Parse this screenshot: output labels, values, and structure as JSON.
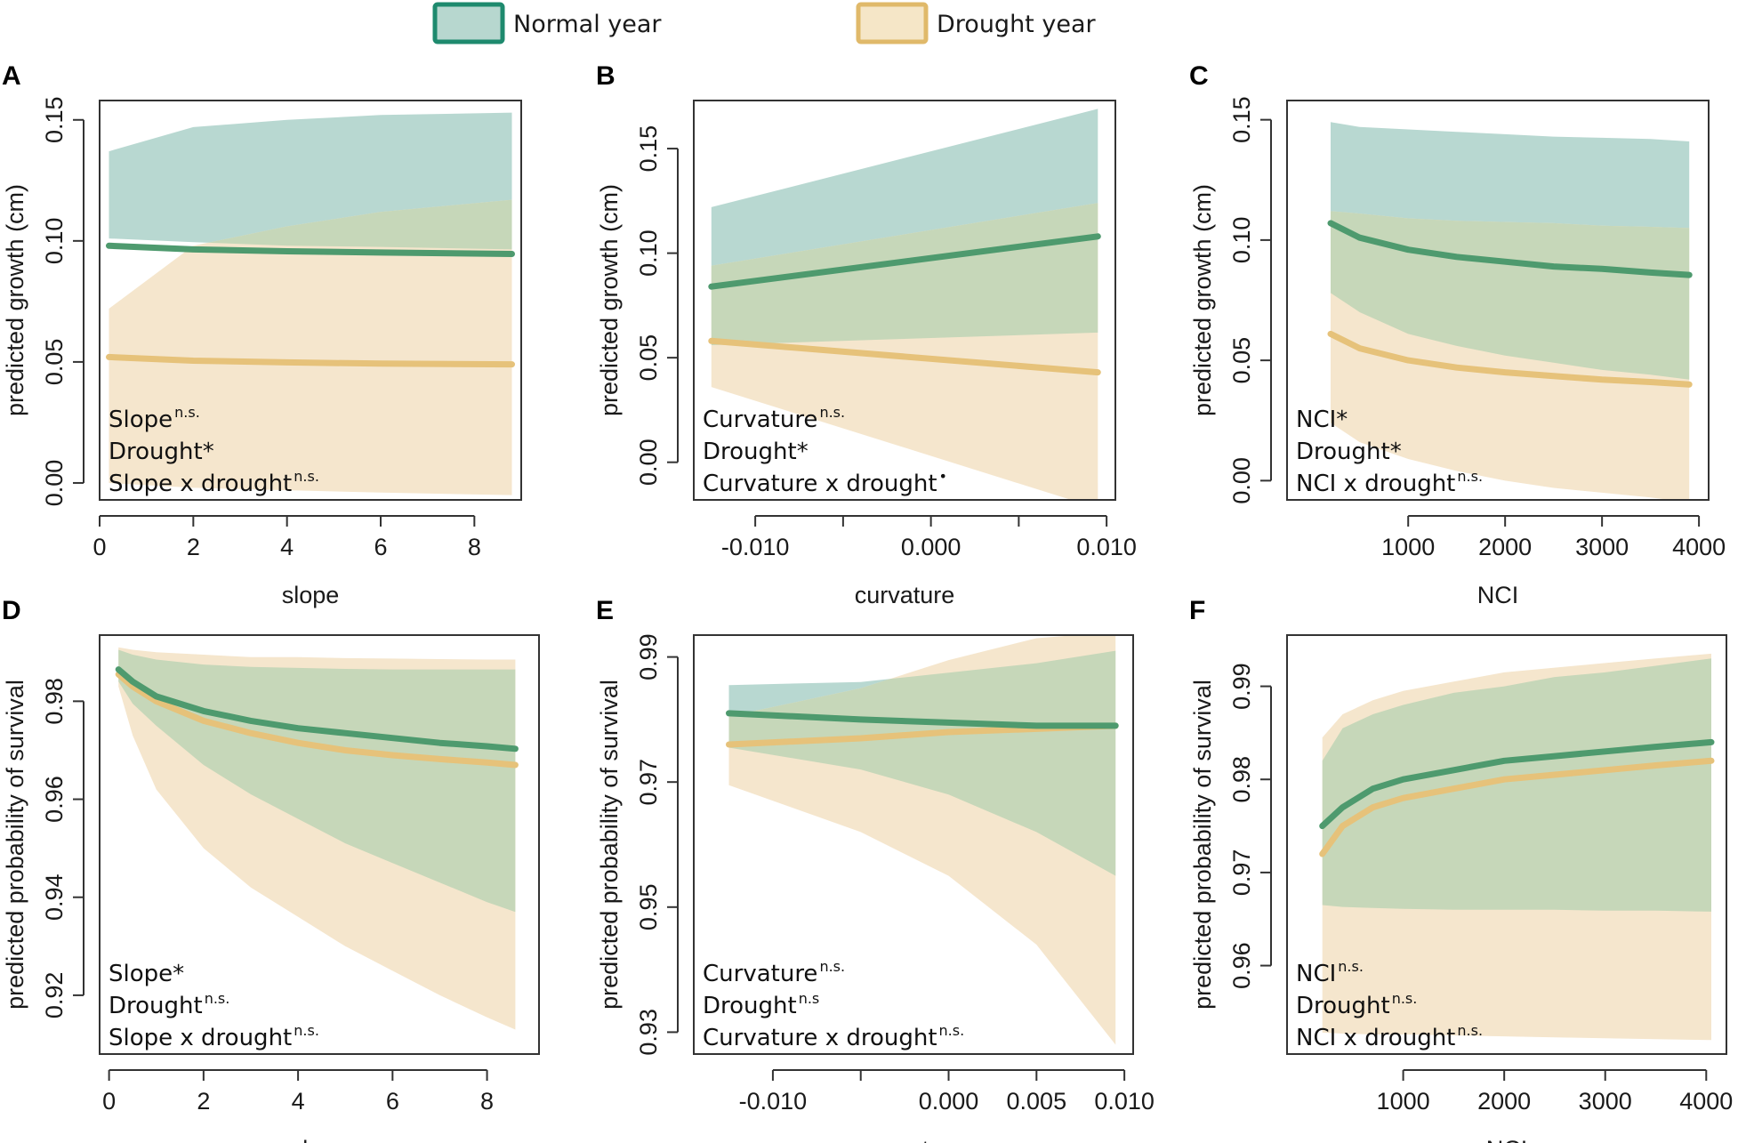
{
  "legend": {
    "items": [
      {
        "label": "Normal year",
        "fill": "#b7d7cf",
        "border": "#1e8a6e"
      },
      {
        "label": "Drought year",
        "fill": "#f5e6c7",
        "border": "#e0b96a"
      }
    ]
  },
  "colors": {
    "normal_line": "#4e9a6e",
    "drought_line": "#e6c27a",
    "normal_band": "#9cc9bf",
    "drought_band": "#f5e6cd",
    "overlap_band": "#c6d7b9"
  },
  "chart_data": [
    {
      "panel": "A",
      "type": "line",
      "xlabel": "slope",
      "ylabel": "predicted growth (cm)",
      "xlim": [
        0,
        9
      ],
      "ylim": [
        -0.007,
        0.158
      ],
      "xticks": [
        "0",
        "2",
        "4",
        "6",
        "8"
      ],
      "xtick_values": [
        0,
        2,
        4,
        6,
        8
      ],
      "yticks": [
        "0.00",
        "0.05",
        "0.10",
        "0.15"
      ],
      "ytick_values": [
        0,
        0.05,
        0.1,
        0.15
      ],
      "series": [
        {
          "name": "Normal year",
          "x": [
            0.2,
            2,
            4,
            6,
            8.8
          ],
          "y": [
            0.098,
            0.0965,
            0.0957,
            0.0952,
            0.0946
          ],
          "lower": [
            0.101,
            0.0995,
            0.098,
            0.0975,
            0.0965
          ],
          "upper": [
            0.137,
            0.147,
            0.15,
            0.152,
            0.153
          ]
        },
        {
          "name": "Drought year",
          "x": [
            0.2,
            2,
            4,
            6,
            8.8
          ],
          "y": [
            0.052,
            0.0505,
            0.0498,
            0.0493,
            0.049
          ],
          "lower": [
            0.0,
            -0.002,
            -0.003,
            -0.004,
            -0.005
          ],
          "upper": [
            0.072,
            0.098,
            0.106,
            0.112,
            0.117
          ]
        }
      ],
      "annotation": [
        {
          "text": "Slope",
          "sup": "n.s."
        },
        {
          "text": "Drought*",
          "sup": ""
        },
        {
          "text": "Slope x drought",
          "sup": "n.s."
        }
      ]
    },
    {
      "panel": "B",
      "type": "line",
      "xlabel": "curvature",
      "ylabel": "predicted growth (cm)",
      "xlim": [
        -0.0135,
        0.0105
      ],
      "ylim": [
        -0.018,
        0.173
      ],
      "xticks": [
        "-0.010",
        "0.000",
        "0.010"
      ],
      "xtick_values": [
        -0.01,
        0.0,
        0.01
      ],
      "minor_xticks": [
        -0.005,
        0.005
      ],
      "yticks": [
        "0.00",
        "0.05",
        "0.10",
        "0.15"
      ],
      "ytick_values": [
        0,
        0.05,
        0.1,
        0.15
      ],
      "series": [
        {
          "name": "Normal year",
          "x": [
            -0.0125,
            0.0095
          ],
          "y": [
            0.084,
            0.108
          ],
          "lower": [
            0.056,
            0.062
          ],
          "upper": [
            0.122,
            0.169
          ]
        },
        {
          "name": "Drought year",
          "x": [
            -0.0125,
            0.0095
          ],
          "y": [
            0.058,
            0.043
          ],
          "lower": [
            0.036,
            -0.022
          ],
          "upper": [
            0.094,
            0.124
          ]
        }
      ],
      "annotation": [
        {
          "text": "Curvature",
          "sup": "n.s."
        },
        {
          "text": "Drought*",
          "sup": ""
        },
        {
          "text": "Curvature x drought",
          "sup": "•"
        }
      ]
    },
    {
      "panel": "C",
      "type": "line",
      "xlabel": "NCI",
      "ylabel": "predicted growth (cm)",
      "xlim": [
        -250,
        4100
      ],
      "ylim": [
        -0.008,
        0.158
      ],
      "xticks": [
        "1000",
        "2000",
        "3000",
        "4000"
      ],
      "xtick_values": [
        1000,
        2000,
        3000,
        4000
      ],
      "yticks": [
        "0.00",
        "0.05",
        "0.10",
        "0.15"
      ],
      "ytick_values": [
        0,
        0.05,
        0.1,
        0.15
      ],
      "series": [
        {
          "name": "Normal year",
          "x": [
            200,
            500,
            1000,
            1500,
            2000,
            2500,
            3000,
            3500,
            3900
          ],
          "y": [
            0.107,
            0.101,
            0.096,
            0.093,
            0.091,
            0.089,
            0.088,
            0.0865,
            0.0855
          ],
          "lower": [
            0.078,
            0.07,
            0.061,
            0.056,
            0.052,
            0.049,
            0.046,
            0.044,
            0.042
          ],
          "upper": [
            0.149,
            0.147,
            0.146,
            0.145,
            0.144,
            0.143,
            0.1425,
            0.142,
            0.141
          ]
        },
        {
          "name": "Drought year",
          "x": [
            200,
            500,
            1000,
            1500,
            2000,
            2500,
            3000,
            3500,
            3900
          ],
          "y": [
            0.061,
            0.055,
            0.05,
            0.047,
            0.045,
            0.0435,
            0.042,
            0.041,
            0.04
          ],
          "lower": [
            0.024,
            0.016,
            0.009,
            0.004,
            0.0,
            -0.003,
            -0.005,
            -0.007,
            -0.009
          ],
          "upper": [
            0.112,
            0.111,
            0.109,
            0.108,
            0.1075,
            0.107,
            0.106,
            0.1055,
            0.105
          ]
        }
      ],
      "annotation": [
        {
          "text": "NCI*",
          "sup": ""
        },
        {
          "text": "Drought*",
          "sup": ""
        },
        {
          "text": "NCI x drought",
          "sup": "n.s."
        }
      ]
    },
    {
      "panel": "D",
      "type": "line",
      "xlabel": "slope",
      "ylabel": "predicted probability of survival",
      "xlim": [
        -0.2,
        9.1
      ],
      "ylim": [
        0.908,
        0.9935
      ],
      "xticks": [
        "0",
        "2",
        "4",
        "6",
        "8"
      ],
      "xtick_values": [
        0,
        2,
        4,
        6,
        8
      ],
      "yticks": [
        "0.92",
        "0.94",
        "0.96",
        "0.98"
      ],
      "ytick_values": [
        0.92,
        0.94,
        0.96,
        0.98
      ],
      "series": [
        {
          "name": "Normal year",
          "x": [
            0.2,
            0.5,
            1,
            2,
            3,
            4,
            5,
            6,
            7,
            8,
            8.6
          ],
          "y": [
            0.9865,
            0.984,
            0.981,
            0.978,
            0.976,
            0.9745,
            0.9735,
            0.9725,
            0.9715,
            0.9708,
            0.9703
          ],
          "lower": [
            0.984,
            0.9795,
            0.975,
            0.967,
            0.961,
            0.956,
            0.951,
            0.947,
            0.943,
            0.939,
            0.937
          ],
          "upper": [
            0.9905,
            0.9895,
            0.9885,
            0.9875,
            0.987,
            0.9868,
            0.9866,
            0.9865,
            0.9865,
            0.9865,
            0.9865
          ]
        },
        {
          "name": "Drought year",
          "x": [
            0.2,
            0.5,
            1,
            2,
            3,
            4,
            5,
            6,
            7,
            8,
            8.6
          ],
          "y": [
            0.9855,
            0.983,
            0.98,
            0.976,
            0.9735,
            0.9715,
            0.97,
            0.969,
            0.9682,
            0.9675,
            0.967
          ],
          "lower": [
            0.983,
            0.973,
            0.962,
            0.95,
            0.942,
            0.936,
            0.93,
            0.925,
            0.92,
            0.9155,
            0.913
          ],
          "upper": [
            0.991,
            0.9905,
            0.99,
            0.9895,
            0.989,
            0.989,
            0.9888,
            0.9887,
            0.9886,
            0.9885,
            0.9885
          ]
        }
      ],
      "annotation": [
        {
          "text": "Slope*",
          "sup": ""
        },
        {
          "text": "Drought",
          "sup": "n.s."
        },
        {
          "text": "Slope x drought",
          "sup": "n.s."
        }
      ]
    },
    {
      "panel": "E",
      "type": "line",
      "xlabel": "curvature",
      "ylabel": "predicted probability of survival",
      "xlim": [
        -0.0145,
        0.0105
      ],
      "ylim": [
        0.9265,
        0.9935
      ],
      "xticks": [
        "-0.010",
        "0.000",
        "0.005",
        "0.010"
      ],
      "xtick_values": [
        -0.01,
        0.0,
        0.005,
        0.01
      ],
      "minor_xticks": [
        -0.005
      ],
      "yticks": [
        "0.93",
        "0.95",
        "0.97",
        "0.99"
      ],
      "ytick_values": [
        0.93,
        0.95,
        0.97,
        0.99
      ],
      "series": [
        {
          "name": "Normal year",
          "x": [
            -0.0125,
            -0.005,
            0.0,
            0.005,
            0.0095
          ],
          "y": [
            0.981,
            0.98,
            0.9795,
            0.979,
            0.979
          ],
          "lower": [
            0.9755,
            0.972,
            0.968,
            0.962,
            0.955
          ],
          "upper": [
            0.9855,
            0.986,
            0.9875,
            0.989,
            0.991
          ]
        },
        {
          "name": "Drought year",
          "x": [
            -0.0125,
            -0.005,
            0.0,
            0.005,
            0.0095
          ],
          "y": [
            0.976,
            0.977,
            0.978,
            0.9785,
            0.979
          ],
          "lower": [
            0.9695,
            0.962,
            0.955,
            0.944,
            0.928
          ],
          "upper": [
            0.9805,
            0.985,
            0.9895,
            0.993,
            0.994
          ]
        }
      ],
      "annotation": [
        {
          "text": "Curvature",
          "sup": "n.s."
        },
        {
          "text": "Drought",
          "sup": "n.s"
        },
        {
          "text": "Curvature x drought",
          "sup": "n.s."
        }
      ]
    },
    {
      "panel": "F",
      "type": "line",
      "xlabel": "NCI",
      "ylabel": "predicted probability of survival",
      "xlim": [
        -150,
        4200
      ],
      "ylim": [
        0.9505,
        0.9955
      ],
      "xticks": [
        "1000",
        "2000",
        "3000",
        "4000"
      ],
      "xtick_values": [
        1000,
        2000,
        3000,
        4000
      ],
      "yticks": [
        "0.96",
        "0.97",
        "0.98",
        "0.99"
      ],
      "ytick_values": [
        0.96,
        0.97,
        0.98,
        0.99
      ],
      "series": [
        {
          "name": "Normal year",
          "x": [
            200,
            400,
            700,
            1000,
            1500,
            2000,
            2500,
            3000,
            3500,
            4050
          ],
          "y": [
            0.975,
            0.977,
            0.979,
            0.98,
            0.981,
            0.982,
            0.9825,
            0.983,
            0.9835,
            0.984
          ],
          "lower": [
            0.9665,
            0.9663,
            0.9662,
            0.9661,
            0.966,
            0.966,
            0.966,
            0.9659,
            0.9659,
            0.9658
          ],
          "upper": [
            0.982,
            0.9855,
            0.987,
            0.988,
            0.9893,
            0.99,
            0.991,
            0.9915,
            0.9922,
            0.993
          ]
        },
        {
          "name": "Drought year",
          "x": [
            200,
            400,
            700,
            1000,
            1500,
            2000,
            2500,
            3000,
            3500,
            4050
          ],
          "y": [
            0.972,
            0.975,
            0.977,
            0.978,
            0.979,
            0.98,
            0.9805,
            0.981,
            0.9815,
            0.982
          ],
          "lower": [
            0.9528,
            0.9527,
            0.9526,
            0.9526,
            0.9525,
            0.9524,
            0.9523,
            0.9522,
            0.9521,
            0.952
          ],
          "upper": [
            0.9845,
            0.987,
            0.9885,
            0.9895,
            0.9905,
            0.9915,
            0.992,
            0.9925,
            0.993,
            0.9935
          ]
        }
      ],
      "annotation": [
        {
          "text": "NCI",
          "sup": "n.s."
        },
        {
          "text": "Drought",
          "sup": "n.s."
        },
        {
          "text": "NCI x drought",
          "sup": "n.s."
        }
      ]
    }
  ]
}
